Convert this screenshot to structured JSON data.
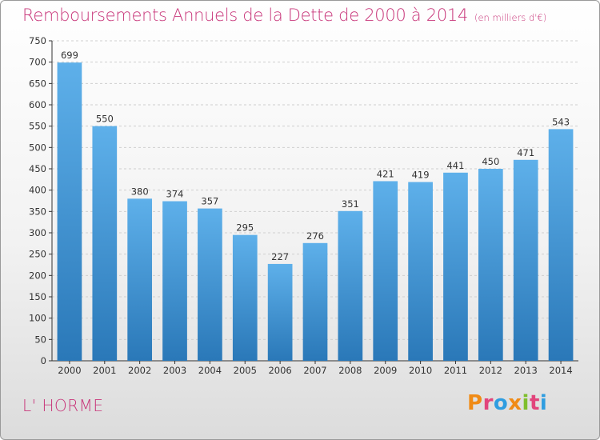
{
  "title": "Remboursements Annuels de la Dette de 2000 à 2014",
  "subtitle": "(en milliers d'€)",
  "commune": "L' HORME",
  "logo": {
    "text": "Proxiti",
    "colors": [
      "#f08b16",
      "#e2457c",
      "#2f9de0",
      "#f08b16",
      "#7fbf2d",
      "#e2457c",
      "#2f9de0"
    ]
  },
  "colors": {
    "bar_top": "#5eb0ea",
    "bar_bottom": "#2a78b8",
    "title": "#c8367a",
    "axis": "#333333",
    "grid": "#cfcfcf"
  },
  "chart_data": {
    "type": "bar",
    "categories": [
      "2000",
      "2001",
      "2002",
      "2003",
      "2004",
      "2005",
      "2006",
      "2007",
      "2008",
      "2009",
      "2010",
      "2011",
      "2012",
      "2013",
      "2014"
    ],
    "values": [
      699,
      550,
      380,
      374,
      357,
      295,
      227,
      276,
      351,
      421,
      419,
      441,
      450,
      471,
      543
    ],
    "ylim": [
      0,
      750
    ],
    "yticks": [
      0,
      50,
      100,
      150,
      200,
      250,
      300,
      350,
      400,
      450,
      500,
      550,
      600,
      650,
      700,
      750
    ],
    "grid": true
  }
}
